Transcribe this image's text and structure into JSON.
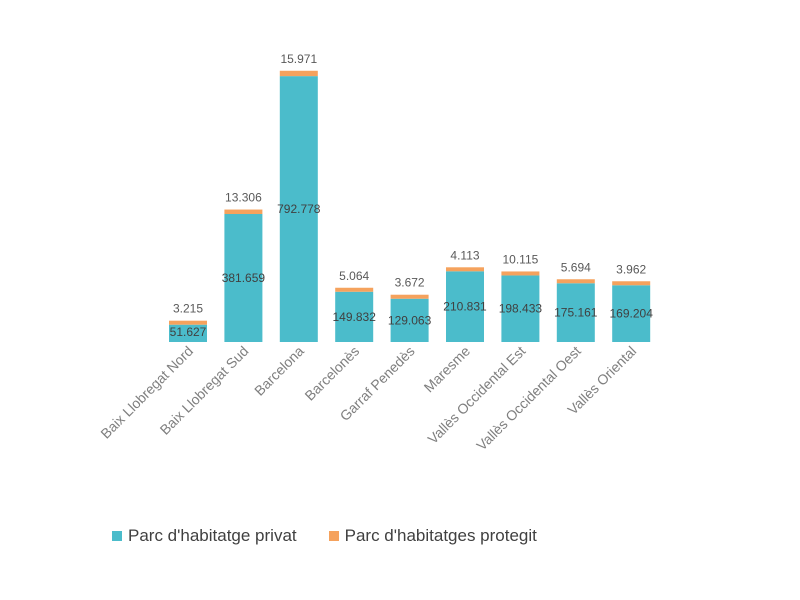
{
  "chart_data": {
    "type": "bar",
    "stacked": true,
    "categories": [
      "Baix Llobregat Nord",
      "Baix Llobregat Sud",
      "Barcelona",
      "Barcelonès",
      "Garraf Penedès",
      "Maresme",
      "Vallès Occidental Est",
      "Vallès Occidental Oest",
      "Vallès Oriental"
    ],
    "series": [
      {
        "name": "Parc d'habitatge privat",
        "color": "#4bbccb",
        "values": [
          51627,
          381659,
          792778,
          149832,
          129063,
          210831,
          198433,
          175161,
          169204
        ],
        "labels": [
          "51.627",
          "381.659",
          "792.778",
          "149.832",
          "129.063",
          "210.831",
          "198.433",
          "175.161",
          "169.204"
        ]
      },
      {
        "name": "Parc d'habitatges protegit",
        "color": "#f5a25d",
        "values": [
          3215,
          13306,
          15971,
          5064,
          3672,
          4113,
          10115,
          5694,
          3962
        ],
        "labels": [
          "3.215",
          "13.306",
          "15.971",
          "5.064",
          "3.672",
          "4.113",
          "10.115",
          "5.694",
          "3.962"
        ]
      }
    ],
    "ylim": [
      0,
      820000
    ],
    "grid": false,
    "axes_visible": false,
    "legend_position": "bottom"
  }
}
